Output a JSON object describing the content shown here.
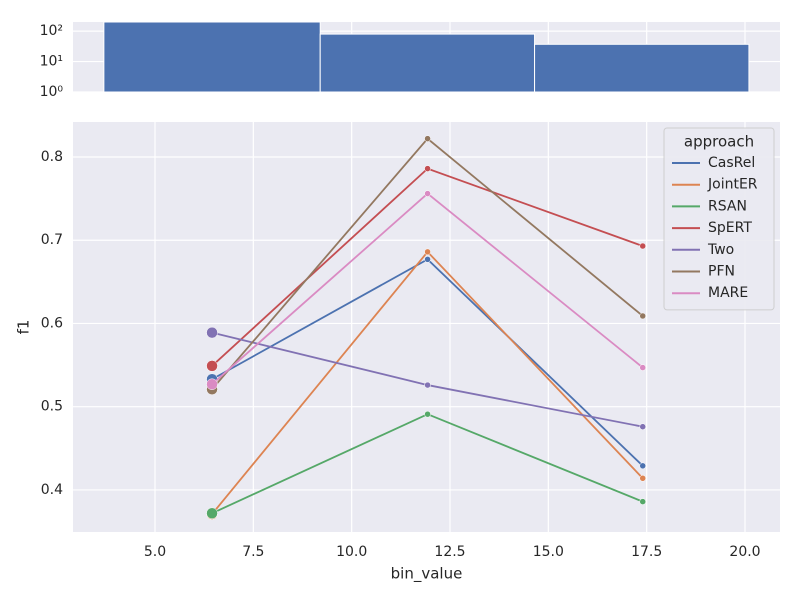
{
  "chart_data": [
    {
      "type": "histogram",
      "bins": [
        3.7,
        9.2,
        14.65,
        20.1
      ],
      "values": [
        200,
        80,
        37
      ],
      "color": "#4c72b0",
      "xlim": [
        2.915,
        20.89
      ],
      "ylim": [
        1,
        200
      ],
      "log_y": true,
      "grid": true,
      "xticks": [
        {
          "value": 5,
          "label": "5.0"
        },
        {
          "value": 7.5,
          "label": "7.5"
        },
        {
          "value": 10,
          "label": "10.0"
        },
        {
          "value": 12.5,
          "label": "12.5"
        },
        {
          "value": 15,
          "label": "15.0"
        },
        {
          "value": 17.5,
          "label": "17.5"
        },
        {
          "value": 20,
          "label": "20.0"
        }
      ],
      "yticks": [
        {
          "value": 1,
          "label": "10⁰"
        },
        {
          "value": 10,
          "label": "10¹"
        },
        {
          "value": 100,
          "label": "10²"
        }
      ]
    },
    {
      "type": "line",
      "x_label": "bin_value",
      "y_label": "f1",
      "x": [
        6.45,
        11.93,
        17.4
      ],
      "xlim": [
        2.915,
        20.89
      ],
      "ylim": [
        0.3495,
        0.842
      ],
      "grid": true,
      "legend_title": "approach",
      "legend": "upper right",
      "xticks": [
        {
          "value": 5,
          "label": "5.0"
        },
        {
          "value": 7.5,
          "label": "7.5"
        },
        {
          "value": 10,
          "label": "10.0"
        },
        {
          "value": 12.5,
          "label": "12.5"
        },
        {
          "value": 15,
          "label": "15.0"
        },
        {
          "value": 17.5,
          "label": "17.5"
        },
        {
          "value": 20,
          "label": "20.0"
        }
      ],
      "yticks": [
        0.4,
        0.5,
        0.6,
        0.7,
        0.8
      ],
      "series": [
        {
          "name": "CasRel",
          "color": "#4c72b0",
          "values": [
            0.533,
            0.677,
            0.429
          ]
        },
        {
          "name": "JointER",
          "color": "#dd8452",
          "values": [
            0.371,
            0.686,
            0.414
          ]
        },
        {
          "name": "RSAN",
          "color": "#55a868",
          "values": [
            0.372,
            0.491,
            0.386
          ]
        },
        {
          "name": "SpERT",
          "color": "#c44e52",
          "values": [
            0.549,
            0.786,
            0.693
          ]
        },
        {
          "name": "Two",
          "color": "#8172b3",
          "values": [
            0.589,
            0.526,
            0.476
          ]
        },
        {
          "name": "PFN",
          "color": "#937860",
          "values": [
            0.521,
            0.822,
            0.609
          ]
        },
        {
          "name": "MARE",
          "color": "#da8bc3",
          "values": [
            0.527,
            0.756,
            0.547
          ]
        }
      ]
    }
  ]
}
